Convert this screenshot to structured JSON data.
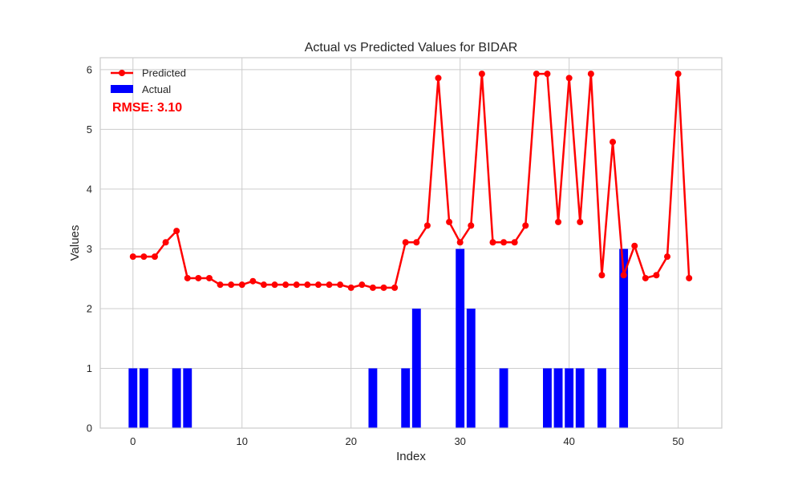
{
  "chart_data": {
    "type": "bar",
    "title": "Actual vs Predicted Values for BIDAR",
    "xlabel": "Index",
    "ylabel": "Values",
    "xlim": [
      -3,
      54
    ],
    "ylim": [
      0,
      6.2
    ],
    "x_ticks": [
      0,
      10,
      20,
      30,
      40,
      50
    ],
    "y_ticks": [
      0,
      1,
      2,
      3,
      4,
      5,
      6
    ],
    "grid": true,
    "legend_position": "top-left",
    "annotation": "RMSE: 3.10",
    "x": [
      0,
      1,
      2,
      3,
      4,
      5,
      6,
      7,
      8,
      9,
      10,
      11,
      12,
      13,
      14,
      15,
      16,
      17,
      18,
      19,
      20,
      21,
      22,
      23,
      24,
      25,
      26,
      27,
      28,
      29,
      30,
      31,
      32,
      33,
      34,
      35,
      36,
      37,
      38,
      39,
      40,
      41,
      42,
      43,
      44,
      45,
      46,
      47,
      48,
      49,
      50,
      51
    ],
    "series": [
      {
        "name": "Predicted",
        "kind": "line",
        "color": "#ff0000",
        "values": [
          2.87,
          2.87,
          2.87,
          3.11,
          3.3,
          2.51,
          2.51,
          2.51,
          2.4,
          2.4,
          2.4,
          2.46,
          2.4,
          2.4,
          2.4,
          2.4,
          2.4,
          2.4,
          2.4,
          2.4,
          2.35,
          2.4,
          2.35,
          2.35,
          2.35,
          3.11,
          3.11,
          3.39,
          5.86,
          3.45,
          3.11,
          3.39,
          5.93,
          3.11,
          3.11,
          3.11,
          3.39,
          5.93,
          5.93,
          3.45,
          5.86,
          3.45,
          5.93,
          2.56,
          4.79,
          2.56,
          3.05,
          2.51,
          2.56,
          2.87,
          5.93,
          2.51
        ]
      },
      {
        "name": "Actual",
        "kind": "bar",
        "color": "#0000ff",
        "values": [
          1,
          1,
          0,
          0,
          1,
          1,
          0,
          0,
          0,
          0,
          0,
          0,
          0,
          0,
          0,
          0,
          0,
          0,
          0,
          0,
          0,
          0,
          1,
          0,
          0,
          1,
          2,
          0,
          0,
          0,
          3,
          2,
          0,
          0,
          1,
          0,
          0,
          0,
          1,
          1,
          1,
          1,
          0,
          1,
          0,
          3,
          0,
          0,
          0,
          0,
          0,
          0
        ]
      }
    ]
  },
  "colors": {
    "grid": "#cccccc",
    "axes_edge": "#cccccc",
    "rmse": "#ff0000"
  }
}
